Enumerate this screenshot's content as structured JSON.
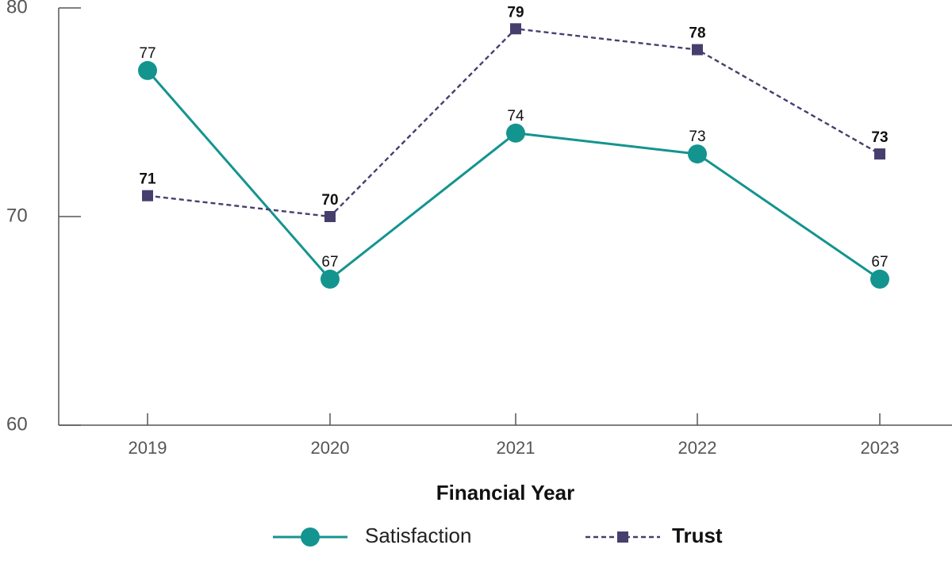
{
  "chart_data": {
    "type": "line",
    "xlabel": "Financial Year",
    "ylabel": "",
    "categories": [
      "2019",
      "2020",
      "2021",
      "2022",
      "2023"
    ],
    "ylim": [
      60,
      80
    ],
    "yticks": [
      60,
      70,
      80
    ],
    "grid": false,
    "legend_position": "bottom",
    "series": [
      {
        "name": "Satisfaction",
        "values": [
          77,
          67,
          74,
          73,
          67
        ],
        "color": "#14948f",
        "line_style": "solid",
        "marker": "circle",
        "label_weight": "normal"
      },
      {
        "name": "Trust",
        "values": [
          71,
          70,
          79,
          78,
          73
        ],
        "color": "#463f6e",
        "line_style": "dashed",
        "marker": "square",
        "label_weight": "bold"
      }
    ]
  }
}
